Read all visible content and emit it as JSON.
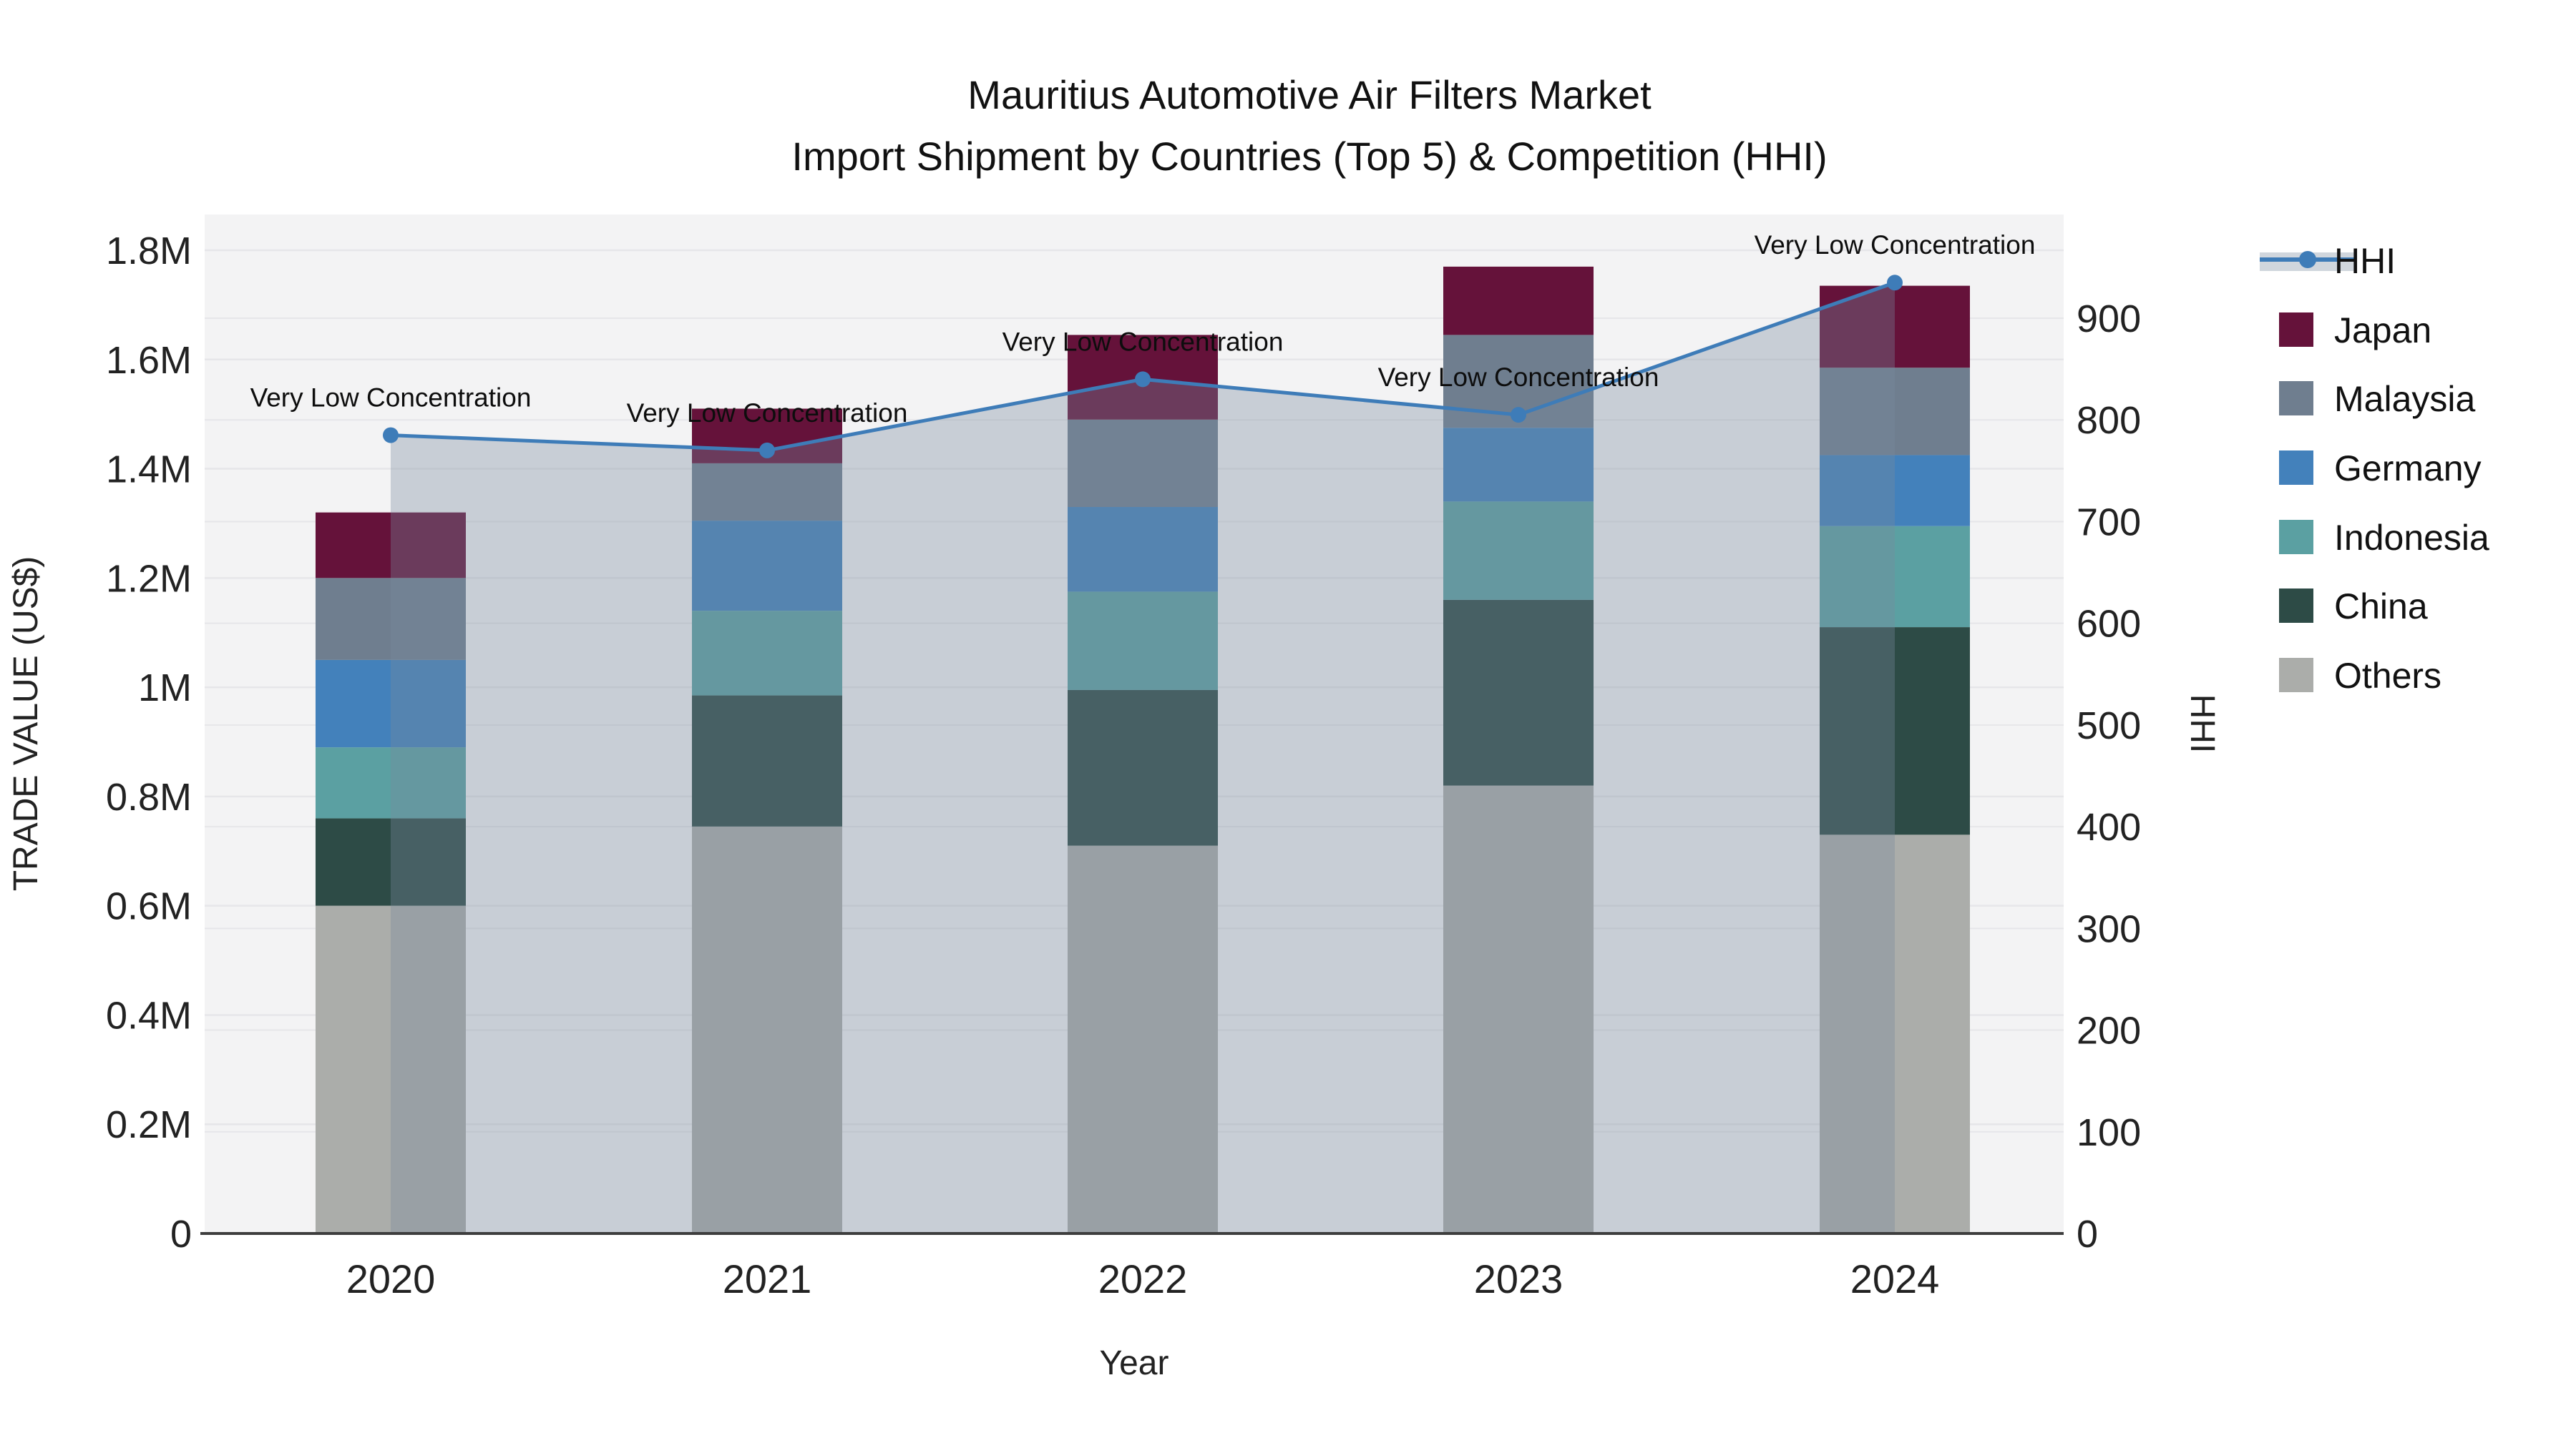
{
  "title": {
    "line1": "Mauritius Automotive Air Filters Market",
    "line2": "Import Shipment by Countries (Top 5) & Competition (HHI)"
  },
  "chart_data": {
    "type": "bar",
    "subtype": "stacked-bars-with-secondary-axis-line-and-area",
    "categories": [
      "2020",
      "2021",
      "2022",
      "2023",
      "2024"
    ],
    "xlabel": "Year",
    "ylabel_left": "TRADE VALUE (US$)",
    "ylabel_right": "HHI",
    "stack_order_note": "series listed bottom-to-top of the stack",
    "series": [
      {
        "name": "Others",
        "color": "#abadaa",
        "values": [
          600000,
          745000,
          710000,
          820000,
          730000
        ]
      },
      {
        "name": "China",
        "color": "#2d4b46",
        "values": [
          160000,
          240000,
          285000,
          340000,
          380000
        ]
      },
      {
        "name": "Indonesia",
        "color": "#5ba0a2",
        "values": [
          130000,
          155000,
          180000,
          180000,
          185000
        ]
      },
      {
        "name": "Germany",
        "color": "#4381bb",
        "values": [
          160000,
          165000,
          155000,
          135000,
          130000
        ]
      },
      {
        "name": "Malaysia",
        "color": "#6f7e8f",
        "values": [
          150000,
          105000,
          160000,
          170000,
          160000
        ]
      },
      {
        "name": "Japan",
        "color": "#65123a",
        "values": [
          120000,
          100000,
          155000,
          125000,
          150000
        ]
      }
    ],
    "line": {
      "name": "HHI",
      "color": "#3e7cb8",
      "area_fill": "rgba(120,138,157,0.35)",
      "values": [
        785,
        770,
        840,
        805,
        935
      ],
      "annotations": [
        "Very Low Concentration",
        "Very Low Concentration",
        "Very Low Concentration",
        "Very Low Concentration",
        "Very Low Concentration"
      ]
    },
    "yticks_left": {
      "values": [
        0,
        200000,
        400000,
        600000,
        800000,
        1000000,
        1200000,
        1400000,
        1600000,
        1800000
      ],
      "labels": [
        "0",
        "0.2M",
        "0.4M",
        "0.6M",
        "0.8M",
        "1M",
        "1.2M",
        "1.4M",
        "1.6M",
        "1.8M"
      ]
    },
    "yticks_right": {
      "values": [
        0,
        100,
        200,
        300,
        400,
        500,
        600,
        700,
        800,
        900
      ],
      "labels": [
        "0",
        "100",
        "200",
        "300",
        "400",
        "500",
        "600",
        "700",
        "800",
        "900"
      ]
    },
    "ylim_left": [
      0,
      1864000
    ],
    "ylim_right": [
      0,
      1002
    ],
    "grid": true,
    "legend_position": "right",
    "legend_items": [
      "HHI",
      "Japan",
      "Malaysia",
      "Germany",
      "Indonesia",
      "China",
      "Others"
    ]
  },
  "colors": {
    "plot_bg": "#f3f3f4",
    "gridline": "#e6e6e9",
    "axis_line": "#3d3d3d",
    "hhi_line": "#3e7cb8",
    "hhi_area": "rgba(120,138,157,0.35)"
  }
}
